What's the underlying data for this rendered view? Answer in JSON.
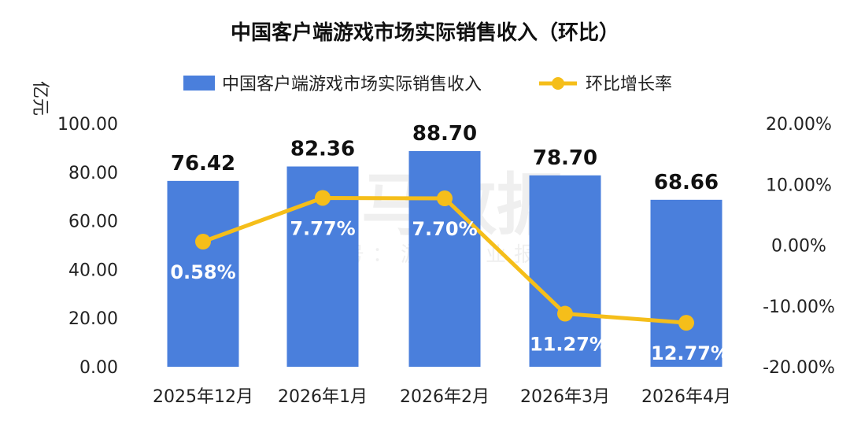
{
  "watermark": {
    "main": "伽马数据",
    "sub": "微信号：游戏产业报告"
  },
  "chart_data": {
    "type": "bar",
    "title": "中国客户端游戏市场实际销售收入（环比）",
    "ylabel": "亿元",
    "categories": [
      "2025年12月",
      "2026年1月",
      "2026年2月",
      "2026年3月",
      "2026年4月"
    ],
    "ylim": [
      0,
      100
    ],
    "y2lim": [
      -20,
      20
    ],
    "yticks": [
      "0.00",
      "20.00",
      "40.00",
      "60.00",
      "80.00",
      "100.00"
    ],
    "y2ticks": [
      "-20.00%",
      "-10.00%",
      "0.00%",
      "10.00%",
      "20.00%"
    ],
    "series": [
      {
        "name": "中国客户端游戏市场实际销售收入",
        "type": "bar",
        "axis": "left",
        "color": "#4a7fdc",
        "values": [
          76.42,
          82.36,
          88.7,
          78.7,
          68.66
        ],
        "labels": [
          "76.42",
          "82.36",
          "88.70",
          "78.70",
          "68.66"
        ]
      },
      {
        "name": "环比增长率",
        "type": "line",
        "axis": "right",
        "color": "#f5be1a",
        "values": [
          0.58,
          7.77,
          7.7,
          -11.27,
          -12.77
        ],
        "labels": [
          "0.58%",
          "7.77%",
          "7.70%",
          "-11.27%",
          "-12.77%"
        ]
      }
    ],
    "legend": "top-center",
    "grid": false
  }
}
